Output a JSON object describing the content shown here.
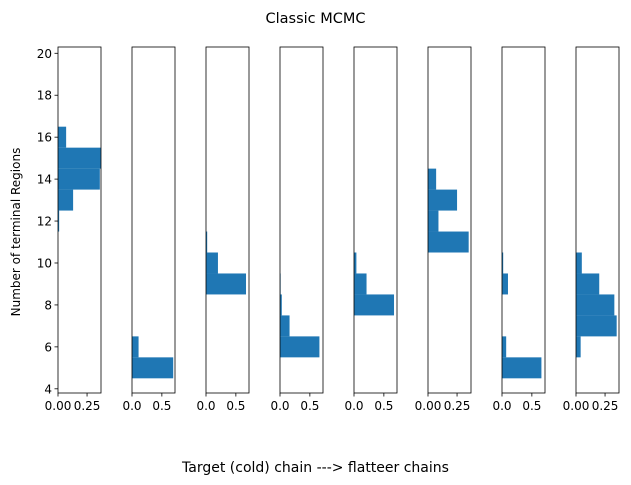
{
  "figure": {
    "title": "Classic MCMC",
    "xlabel": "Target (cold) chain ---> flatteer chains",
    "ylabel": "Number of terminal Regions",
    "bar_color": "#1f77b4"
  },
  "chart_data": {
    "type": "bar",
    "orientation": "horizontal",
    "title": "Classic MCMC",
    "xlabel": "Target (cold) chain ---> flatteer chains",
    "ylabel": "Number of terminal Regions",
    "ylim": [
      3.8,
      20.3
    ],
    "yticks": [
      4,
      6,
      8,
      10,
      12,
      14,
      16,
      18,
      20
    ],
    "grid": false,
    "panels": [
      {
        "xlim": [
          0,
          0.37
        ],
        "xticks": [
          {
            "value": 0.0,
            "label": "0.00"
          },
          {
            "value": 0.25,
            "label": "0.25"
          }
        ],
        "bars": [
          {
            "y0": 11.5,
            "y1": 12.5,
            "value": 0.01
          },
          {
            "y0": 12.5,
            "y1": 13.5,
            "value": 0.13
          },
          {
            "y0": 13.5,
            "y1": 14.5,
            "value": 0.36
          },
          {
            "y0": 14.5,
            "y1": 15.5,
            "value": 0.37
          },
          {
            "y0": 15.5,
            "y1": 16.5,
            "value": 0.07
          }
        ]
      },
      {
        "xlim": [
          0,
          0.72
        ],
        "xticks": [
          {
            "value": 0.0,
            "label": "0.0"
          },
          {
            "value": 0.5,
            "label": "0.5"
          }
        ],
        "bars": [
          {
            "y0": 4.5,
            "y1": 5.5,
            "value": 0.69
          },
          {
            "y0": 5.5,
            "y1": 6.5,
            "value": 0.11
          }
        ]
      },
      {
        "xlim": [
          0,
          0.72
        ],
        "xticks": [
          {
            "value": 0.0,
            "label": "0.0"
          },
          {
            "value": 0.5,
            "label": "0.5"
          }
        ],
        "bars": [
          {
            "y0": 8.5,
            "y1": 9.5,
            "value": 0.67
          },
          {
            "y0": 9.5,
            "y1": 10.5,
            "value": 0.2
          },
          {
            "y0": 10.5,
            "y1": 11.5,
            "value": 0.02
          }
        ]
      },
      {
        "xlim": [
          0,
          0.72
        ],
        "xticks": [
          {
            "value": 0.0,
            "label": "0.0"
          },
          {
            "value": 0.5,
            "label": "0.5"
          }
        ],
        "bars": [
          {
            "y0": 5.5,
            "y1": 6.5,
            "value": 0.66
          },
          {
            "y0": 6.5,
            "y1": 7.5,
            "value": 0.16
          },
          {
            "y0": 7.5,
            "y1": 8.5,
            "value": 0.03
          },
          {
            "y0": 8.5,
            "y1": 9.5,
            "value": 0.01
          }
        ]
      },
      {
        "xlim": [
          0,
          0.72
        ],
        "xticks": [
          {
            "value": 0.0,
            "label": "0.0"
          },
          {
            "value": 0.5,
            "label": "0.5"
          }
        ],
        "bars": [
          {
            "y0": 7.5,
            "y1": 8.5,
            "value": 0.67
          },
          {
            "y0": 8.5,
            "y1": 9.5,
            "value": 0.21
          },
          {
            "y0": 9.5,
            "y1": 10.5,
            "value": 0.04
          }
        ]
      },
      {
        "xlim": [
          0,
          0.37
        ],
        "xticks": [
          {
            "value": 0.0,
            "label": "0.00"
          },
          {
            "value": 0.25,
            "label": "0.25"
          }
        ],
        "bars": [
          {
            "y0": 10.5,
            "y1": 11.5,
            "value": 0.35
          },
          {
            "y0": 11.5,
            "y1": 12.5,
            "value": 0.09
          },
          {
            "y0": 12.5,
            "y1": 13.5,
            "value": 0.25
          },
          {
            "y0": 13.5,
            "y1": 14.5,
            "value": 0.07
          }
        ]
      },
      {
        "xlim": [
          0,
          0.72
        ],
        "xticks": [
          {
            "value": 0.0,
            "label": "0.0"
          },
          {
            "value": 0.5,
            "label": "0.5"
          }
        ],
        "bars": [
          {
            "y0": 4.5,
            "y1": 5.5,
            "value": 0.66
          },
          {
            "y0": 5.5,
            "y1": 6.5,
            "value": 0.07
          },
          {
            "y0": 8.5,
            "y1": 9.5,
            "value": 0.1
          },
          {
            "y0": 9.5,
            "y1": 10.5,
            "value": 0.02
          }
        ]
      },
      {
        "xlim": [
          0,
          0.37
        ],
        "xticks": [
          {
            "value": 0.0,
            "label": "0.00"
          },
          {
            "value": 0.25,
            "label": "0.25"
          }
        ],
        "bars": [
          {
            "y0": 5.5,
            "y1": 6.5,
            "value": 0.04
          },
          {
            "y0": 6.5,
            "y1": 7.5,
            "value": 0.35
          },
          {
            "y0": 7.5,
            "y1": 8.5,
            "value": 0.33
          },
          {
            "y0": 8.5,
            "y1": 9.5,
            "value": 0.2
          },
          {
            "y0": 9.5,
            "y1": 10.5,
            "value": 0.05
          }
        ]
      }
    ]
  }
}
